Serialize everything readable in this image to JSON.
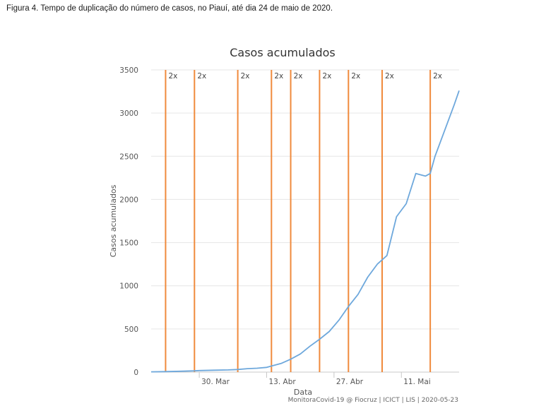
{
  "caption": "Figura 4. Tempo de duplicação do número de casos, no Piauí, até dia 24 de maio de 2020.",
  "footer": "MonitoraCovid-19 @ Fiocruz | ICICT | LIS | 2020-05-23",
  "colors": {
    "line": "#6ea8dc",
    "marker": "#f08a3c",
    "grid": "#e6e6e6",
    "axis": "#c8c8c8",
    "text": "#555555",
    "title": "#333333"
  },
  "chart_data": {
    "type": "line",
    "title": "Casos acumulados",
    "xlabel": "Data",
    "ylabel": "Casos acumulados",
    "ylim": [
      0,
      3500
    ],
    "xlim": [
      "2020-03-20",
      "2020-05-23"
    ],
    "grid": true,
    "yticks": [
      0,
      500,
      1000,
      1500,
      2000,
      2500,
      3000,
      3500
    ],
    "xticks": [
      {
        "date": "2020-03-30",
        "label": "30. Mar"
      },
      {
        "date": "2020-04-13",
        "label": "13. Abr"
      },
      {
        "date": "2020-04-27",
        "label": "27. Abr"
      },
      {
        "date": "2020-05-11",
        "label": "11. Mai"
      }
    ],
    "doubling_markers": [
      {
        "date": "2020-03-23",
        "label": "2x"
      },
      {
        "date": "2020-03-29",
        "label": "2x"
      },
      {
        "date": "2020-04-07",
        "label": "2x"
      },
      {
        "date": "2020-04-14",
        "label": "2x"
      },
      {
        "date": "2020-04-18",
        "label": "2x"
      },
      {
        "date": "2020-04-24",
        "label": "2x"
      },
      {
        "date": "2020-04-30",
        "label": "2x"
      },
      {
        "date": "2020-05-07",
        "label": "2x"
      },
      {
        "date": "2020-05-17",
        "label": "2x"
      }
    ],
    "series": [
      {
        "x": [
          "2020-03-20",
          "2020-03-23",
          "2020-03-26",
          "2020-03-29",
          "2020-03-30",
          "2020-04-02",
          "2020-04-05",
          "2020-04-07",
          "2020-04-09",
          "2020-04-11",
          "2020-04-13",
          "2020-04-14",
          "2020-04-16",
          "2020-04-18",
          "2020-04-20",
          "2020-04-22",
          "2020-04-24",
          "2020-04-26",
          "2020-04-28",
          "2020-04-30",
          "2020-05-02",
          "2020-05-04",
          "2020-05-06",
          "2020-05-08",
          "2020-05-10",
          "2020-05-12",
          "2020-05-14",
          "2020-05-16",
          "2020-05-17",
          "2020-05-18",
          "2020-05-20",
          "2020-05-22",
          "2020-05-23"
        ],
        "values": [
          3,
          6,
          10,
          15,
          18,
          22,
          25,
          30,
          40,
          45,
          55,
          70,
          100,
          150,
          210,
          300,
          380,
          470,
          600,
          760,
          900,
          1100,
          1250,
          1350,
          1800,
          1950,
          2300,
          2270,
          2300,
          2500,
          2800,
          3100,
          3260
        ]
      }
    ]
  }
}
